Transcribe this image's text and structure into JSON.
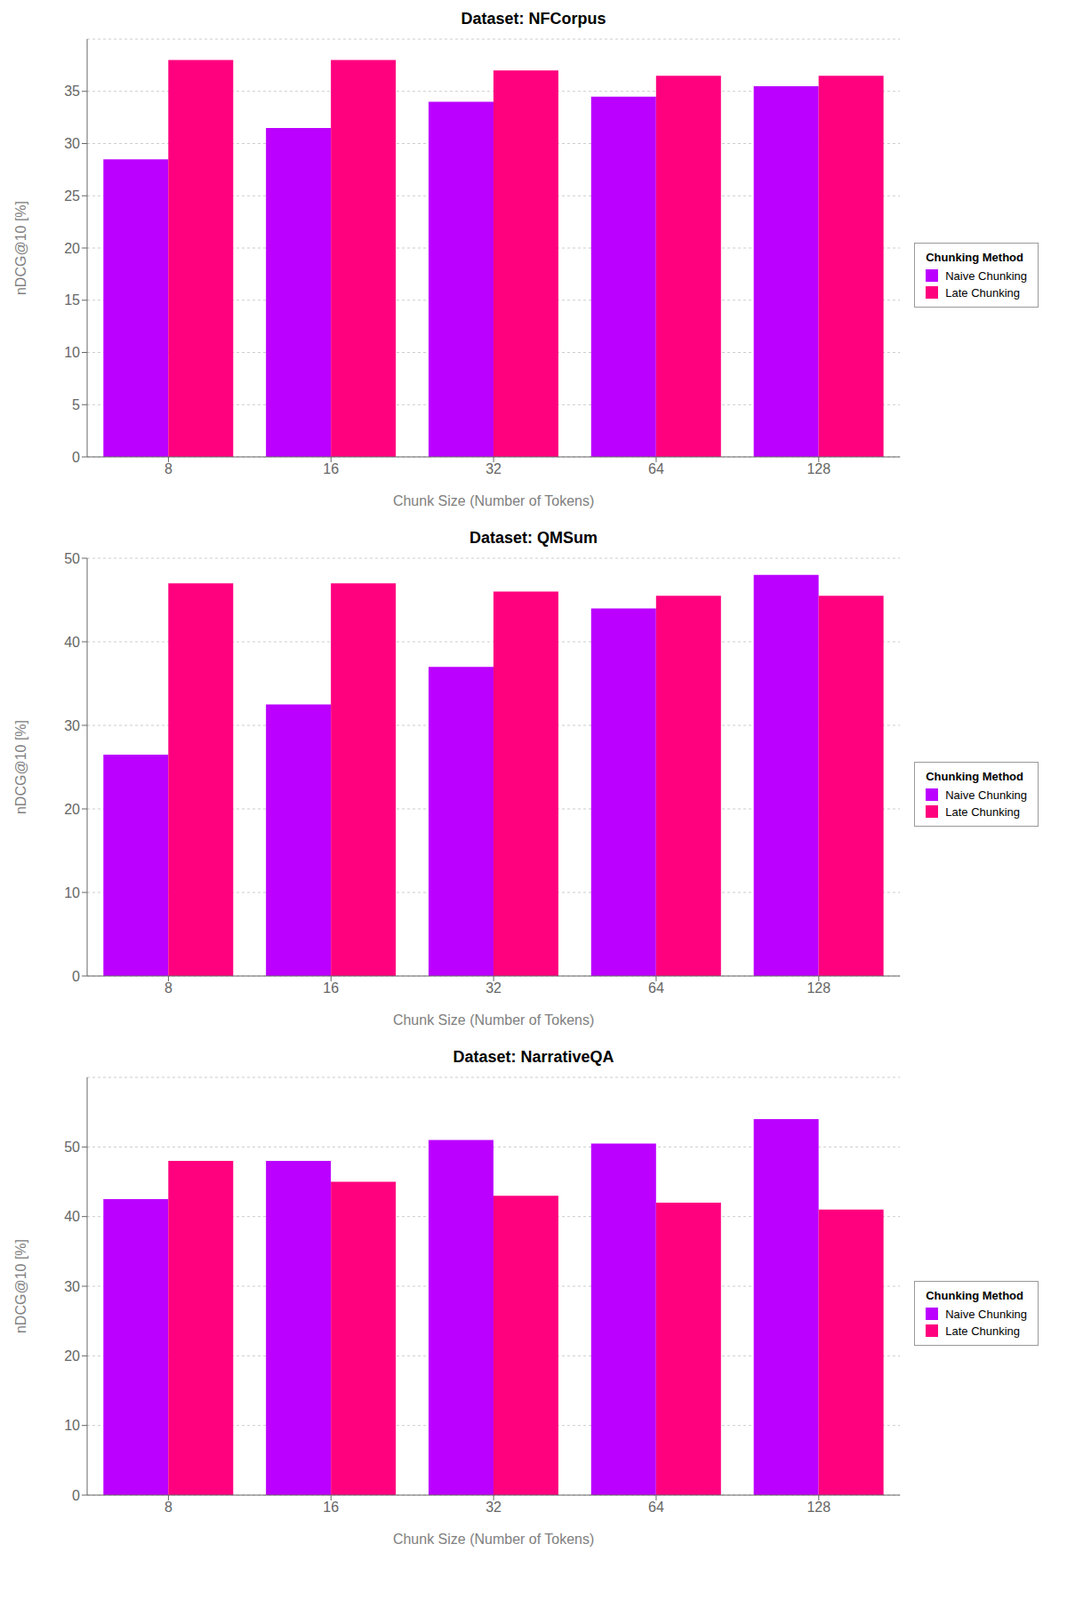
{
  "chart_data": [
    {
      "type": "bar",
      "title": "Dataset: NFCorpus",
      "xlabel": "Chunk Size (Number of Tokens)",
      "ylabel": "nDCG@10 [%]",
      "categories": [
        "8",
        "16",
        "32",
        "64",
        "128"
      ],
      "series": [
        {
          "name": "Naive Chunking",
          "color": "#BB00FF",
          "values": [
            28.5,
            31.5,
            34.0,
            34.5,
            35.5
          ]
        },
        {
          "name": "Late Chunking",
          "color": "#FF007F",
          "values": [
            38.0,
            38.0,
            37.0,
            36.5,
            36.5
          ]
        }
      ],
      "ylim": [
        0,
        40
      ],
      "yticks": [
        0,
        5,
        10,
        15,
        20,
        25,
        30,
        35
      ],
      "grid": true,
      "legend": "right",
      "legend_title": "Chunking Method"
    },
    {
      "type": "bar",
      "title": "Dataset: QMSum",
      "xlabel": "Chunk Size (Number of Tokens)",
      "ylabel": "nDCG@10 [%]",
      "categories": [
        "8",
        "16",
        "32",
        "64",
        "128"
      ],
      "series": [
        {
          "name": "Naive Chunking",
          "color": "#BB00FF",
          "values": [
            26.5,
            32.5,
            37.0,
            44.0,
            48.0
          ]
        },
        {
          "name": "Late Chunking",
          "color": "#FF007F",
          "values": [
            47.0,
            47.0,
            46.0,
            45.5,
            45.5
          ]
        }
      ],
      "ylim": [
        0,
        50
      ],
      "yticks": [
        0,
        10,
        20,
        30,
        40,
        50
      ],
      "grid": true,
      "legend": "right",
      "legend_title": "Chunking Method"
    },
    {
      "type": "bar",
      "title": "Dataset: NarrativeQA",
      "xlabel": "Chunk Size (Number of Tokens)",
      "ylabel": "nDCG@10 [%]",
      "categories": [
        "8",
        "16",
        "32",
        "64",
        "128"
      ],
      "series": [
        {
          "name": "Naive Chunking",
          "color": "#BB00FF",
          "values": [
            42.5,
            48.0,
            51.0,
            50.5,
            54.0
          ]
        },
        {
          "name": "Late Chunking",
          "color": "#FF007F",
          "values": [
            48.0,
            45.0,
            43.0,
            42.0,
            41.0
          ]
        }
      ],
      "ylim": [
        0,
        60
      ],
      "yticks": [
        0,
        10,
        20,
        30,
        40,
        50
      ],
      "grid": true,
      "legend": "right",
      "legend_title": "Chunking Method"
    }
  ]
}
